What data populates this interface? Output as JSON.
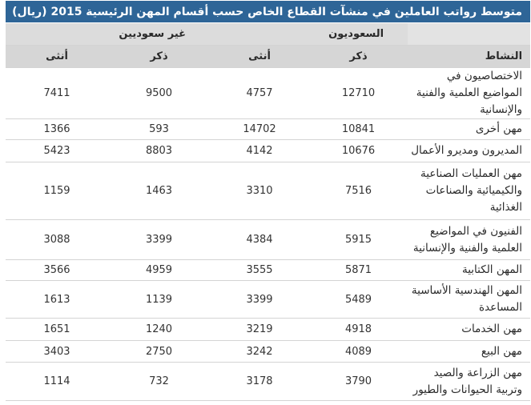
{
  "title": "متوسط رواتب العاملين في منشآت القطاع الخاص حسب أقسام المهن الرئيسية 2015 (ريال)",
  "headers": {
    "group_saudi": "السعوديون",
    "group_non_saudi": "غير سعوديين",
    "activity": "النشاط",
    "male": "ذكر",
    "female": "أنثى"
  },
  "rows": [
    {
      "label": "الاختصاصيون في المواضيع العلمية والفنية والإنسانية",
      "saudi_male": "12710",
      "saudi_female": "4757",
      "non_saudi_male": "9500",
      "non_saudi_female": "7411"
    },
    {
      "label": "مهن أخرى",
      "saudi_male": "10841",
      "saudi_female": "14702",
      "non_saudi_male": "593",
      "non_saudi_female": "1366"
    },
    {
      "label": "المديرون ومديرو الأعمال",
      "saudi_male": "10676",
      "saudi_female": "4142",
      "non_saudi_male": "8803",
      "non_saudi_female": "5423"
    },
    {
      "label": "مهن العمليات الصناعية والكيميائية والصناعات الغذائية",
      "saudi_male": "7516",
      "saudi_female": "3310",
      "non_saudi_male": "1463",
      "non_saudi_female": "1159"
    },
    {
      "label": "الفنيون في المواضيع العلمية والفنية والإنسانية",
      "saudi_male": "5915",
      "saudi_female": "4384",
      "non_saudi_male": "3399",
      "non_saudi_female": "3088"
    },
    {
      "label": "المهن الكتابية",
      "saudi_male": "5871",
      "saudi_female": "3555",
      "non_saudi_male": "4959",
      "non_saudi_female": "3566"
    },
    {
      "label": "المهن الهندسية الأساسية المساعدة",
      "saudi_male": "5489",
      "saudi_female": "3399",
      "non_saudi_male": "1139",
      "non_saudi_female": "1613"
    },
    {
      "label": "مهن الخدمات",
      "saudi_male": "4918",
      "saudi_female": "3219",
      "non_saudi_male": "1240",
      "non_saudi_female": "1651"
    },
    {
      "label": "مهن البيع",
      "saudi_male": "4089",
      "saudi_female": "3242",
      "non_saudi_male": "2750",
      "non_saudi_female": "3403"
    },
    {
      "label": "مهن الزراعة والصيد وتربية الحيوانات والطيور",
      "saudi_male": "3790",
      "saudi_female": "3178",
      "non_saudi_male": "732",
      "non_saudi_female": "1114"
    }
  ]
}
